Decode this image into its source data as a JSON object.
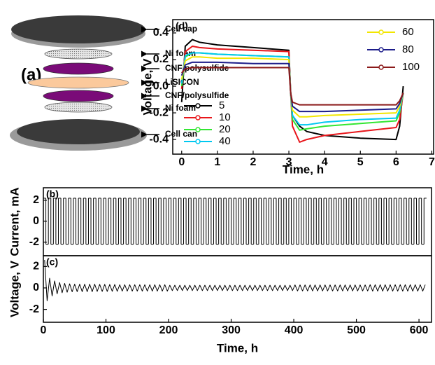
{
  "diagram": {
    "label": "(a)",
    "layers": [
      "Cell cap",
      "Ni foam",
      "CNF/polysulfide",
      "LiSICON",
      "CNF/polysulfide",
      "Ni foam",
      "Cell can"
    ]
  },
  "chart_data": [
    {
      "type": "step",
      "panel_label": "(b)",
      "ylabel": "Current, mA",
      "xlim": [
        0,
        620
      ],
      "ylim": [
        -3.3,
        3.2
      ],
      "yticks": [
        -2,
        0,
        2
      ],
      "color": "#000000",
      "x": [
        2,
        6,
        10,
        14,
        18,
        22,
        26,
        30,
        34,
        38,
        42,
        46,
        50,
        54,
        58,
        62,
        66,
        70,
        74,
        78,
        82,
        86,
        90,
        94,
        98,
        102,
        106,
        110,
        114,
        118,
        122,
        126,
        130,
        134,
        138,
        142,
        146,
        150,
        154,
        158,
        162,
        166,
        170,
        174,
        178,
        182,
        186,
        190,
        194,
        198,
        202,
        206,
        210,
        214,
        218,
        222,
        226,
        230,
        234,
        238,
        242,
        246,
        250,
        254,
        258,
        262,
        266,
        270,
        274,
        278,
        282,
        286,
        290,
        294,
        298,
        302,
        306,
        310,
        314,
        318,
        322,
        326,
        330,
        334,
        338,
        342,
        346,
        350,
        354,
        358,
        362,
        366,
        370,
        374,
        378,
        382,
        386,
        390,
        394,
        398,
        402,
        406,
        410,
        414,
        418,
        422,
        426,
        430,
        434,
        438,
        442,
        446,
        450,
        454,
        458,
        462,
        466,
        470,
        474,
        478,
        482,
        486,
        490,
        494,
        498,
        502,
        506,
        510,
        514,
        518,
        522,
        526,
        530,
        534,
        538,
        542,
        546,
        550,
        554,
        558,
        562,
        566,
        570,
        574,
        578,
        582,
        586,
        590,
        594,
        598,
        602,
        606,
        610
      ],
      "values": [
        2.2,
        -2.2,
        2.2,
        -2.2,
        2.2,
        -2.2,
        2.2,
        -2.2,
        2.2,
        -2.2,
        2.2,
        -2.2,
        2.2,
        -2.2,
        2.2,
        -2.2,
        2.2,
        -2.2,
        2.2,
        -2.2,
        2.2,
        -2.2,
        2.2,
        -2.2,
        2.2,
        -2.2,
        2.2,
        -2.2,
        2.2,
        -2.2,
        2.2,
        -2.2,
        2.2,
        -2.2,
        2.2,
        -2.2,
        2.2,
        -2.2,
        2.2,
        -2.2,
        2.2,
        -2.2,
        2.2,
        -2.2,
        2.2,
        -2.2,
        2.2,
        -2.2,
        2.2,
        -2.2,
        2.2,
        -2.2,
        2.2,
        -2.2,
        2.2,
        -2.2,
        2.2,
        -2.2,
        2.2,
        -2.2,
        2.2,
        -2.2,
        2.2,
        -2.2,
        2.2,
        -2.2,
        2.2,
        -2.2,
        2.2,
        -2.2,
        2.2,
        -2.2,
        2.2,
        -2.2,
        2.2,
        -2.2,
        2.2,
        -2.2,
        2.2,
        -2.2,
        2.2,
        -2.2,
        2.2,
        -2.2,
        2.2,
        -2.2,
        2.2,
        -2.2,
        2.2,
        -2.2,
        2.2,
        -2.2,
        2.2,
        -2.2,
        2.2,
        -2.2,
        2.2,
        -2.2,
        2.2,
        -2.2,
        2.2,
        -2.2,
        2.2,
        -2.2,
        2.2,
        -2.2,
        2.2,
        -2.2,
        2.2,
        -2.2,
        2.2,
        -2.2,
        2.2,
        -2.2,
        2.2,
        -2.2,
        2.2,
        -2.2,
        2.2,
        -2.2,
        2.2,
        -2.2,
        2.2,
        -2.2,
        2.2,
        -2.2,
        2.2,
        -2.2,
        2.2,
        -2.2,
        2.2,
        -2.2,
        2.2,
        -2.2,
        2.2,
        -2.2,
        2.2,
        -2.2,
        2.2,
        -2.2,
        2.2,
        -2.2,
        2.2,
        -2.2,
        2.2,
        -2.2,
        2.2,
        -2.2,
        2.2,
        -2.2,
        2.2,
        -2.2,
        2.2
      ]
    },
    {
      "type": "line",
      "panel_label": "(c)",
      "ylabel": "Voltage, V",
      "xlabel": "Time, h",
      "xlim": [
        0,
        620
      ],
      "ylim": [
        -3.2,
        3.0
      ],
      "xticks": [
        0,
        100,
        200,
        300,
        400,
        500,
        600
      ],
      "yticks": [
        -2,
        0,
        2
      ],
      "color": "#000000",
      "x": [
        2,
        6,
        10,
        14,
        18,
        22,
        26,
        30,
        34,
        38,
        42,
        46,
        50,
        54,
        58,
        62,
        66,
        70,
        74,
        78,
        82,
        86,
        90,
        94,
        98,
        102,
        106,
        110,
        114,
        118,
        122,
        126,
        130,
        134,
        138,
        142,
        146,
        150,
        154,
        158,
        162,
        166,
        170,
        174,
        178,
        182,
        186,
        190,
        194,
        198,
        202,
        206,
        210,
        214,
        218,
        222,
        226,
        230,
        234,
        238,
        242,
        246,
        250,
        254,
        258,
        262,
        266,
        270,
        274,
        278,
        282,
        286,
        290,
        294,
        298,
        302,
        306,
        310,
        314,
        318,
        322,
        326,
        330,
        334,
        338,
        342,
        346,
        350,
        354,
        358,
        362,
        366,
        370,
        374,
        378,
        382,
        386,
        390,
        394,
        398,
        402,
        406,
        410,
        414,
        418,
        422,
        426,
        430,
        434,
        438,
        442,
        446,
        450,
        454,
        458,
        462,
        466,
        470,
        474,
        478,
        482,
        486,
        490,
        494,
        498,
        502,
        506,
        510,
        514,
        518,
        522,
        526,
        530,
        534,
        538,
        542,
        546,
        550,
        554,
        558,
        562,
        566,
        570,
        574,
        578,
        582,
        586,
        590,
        594,
        598,
        602,
        606,
        610
      ],
      "values": [
        2.6,
        -1.2,
        0.9,
        -0.75,
        0.65,
        -0.55,
        0.5,
        -0.45,
        0.42,
        -0.4,
        0.38,
        -0.36,
        0.35,
        -0.35,
        0.35,
        -0.35,
        0.35,
        -0.35,
        0.35,
        -0.35,
        0.35,
        -0.33,
        0.33,
        -0.33,
        0.33,
        -0.33,
        0.32,
        -0.32,
        0.32,
        -0.32,
        0.3,
        -0.3,
        0.3,
        -0.3,
        0.3,
        -0.3,
        0.3,
        -0.3,
        0.3,
        -0.3,
        0.3,
        -0.3,
        0.3,
        -0.3,
        0.3,
        -0.3,
        0.3,
        -0.3,
        0.3,
        -0.3,
        0.25,
        -0.25,
        0.25,
        -0.25,
        0.25,
        -0.25,
        0.25,
        -0.25,
        0.25,
        -0.25,
        0.25,
        -0.25,
        0.25,
        -0.25,
        0.25,
        -0.25,
        0.25,
        -0.25,
        0.25,
        -0.25,
        0.25,
        -0.25,
        0.25,
        -0.25,
        0.25,
        -0.25,
        0.25,
        -0.25,
        0.25,
        -0.25,
        0.25,
        -0.25,
        0.25,
        -0.25,
        0.25,
        -0.25,
        0.25,
        -0.25,
        0.25,
        -0.25,
        0.25,
        -0.25,
        0.25,
        -0.25,
        0.25,
        -0.25,
        0.25,
        -0.25,
        0.25,
        -0.25,
        0.28,
        -0.28,
        0.28,
        -0.28,
        0.28,
        -0.28,
        0.28,
        -0.28,
        0.28,
        -0.28,
        0.28,
        -0.28,
        0.28,
        -0.28,
        0.28,
        -0.28,
        0.28,
        -0.28,
        0.28,
        -0.28,
        0.28,
        -0.28,
        0.28,
        -0.28,
        0.28,
        -0.28,
        0.28,
        -0.28,
        0.28,
        -0.28,
        0.3,
        -0.3,
        0.3,
        -0.3,
        0.3,
        -0.3,
        0.3,
        -0.3,
        0.3,
        -0.3,
        0.3,
        -0.3,
        0.3,
        -0.3,
        0.3,
        -0.3,
        0.3,
        -0.3,
        0.3,
        -0.3,
        0.3,
        -0.3,
        0.3
      ]
    },
    {
      "type": "line",
      "panel_label": "(d)",
      "ylabel": "Voltage, V",
      "xlabel": "Time, h",
      "xlim": [
        -0.25,
        7.05
      ],
      "ylim": [
        -0.51,
        0.5
      ],
      "xticks": [
        0,
        1,
        2,
        3,
        4,
        5,
        6,
        7
      ],
      "yticks": [
        -0.4,
        -0.2,
        {
          "value": 0,
          "label": "0.0"
        },
        0.2,
        0.4
      ],
      "x": [
        0,
        0.1,
        0.3,
        0.5,
        1,
        2,
        3,
        3.05,
        3.1,
        3.3,
        3.5,
        4,
        5,
        6,
        6.1,
        6.2
      ],
      "series": [
        {
          "name": "5",
          "color": "#000000",
          "values": [
            -0.12,
            0.3,
            0.35,
            0.33,
            0.31,
            0.29,
            0.27,
            -0.05,
            -0.22,
            -0.3,
            -0.34,
            -0.37,
            -0.39,
            -0.4,
            -0.3,
            0.0
          ]
        },
        {
          "name": "10",
          "color": "#e8161b",
          "values": [
            -0.02,
            0.26,
            0.3,
            0.29,
            0.28,
            0.27,
            0.26,
            -0.05,
            -0.3,
            -0.42,
            -0.4,
            -0.37,
            -0.34,
            -0.31,
            -0.25,
            -0.05
          ]
        },
        {
          "name": "20",
          "color": "#33e633",
          "values": [
            0.0,
            0.22,
            0.25,
            0.25,
            0.24,
            0.23,
            0.22,
            -0.05,
            -0.25,
            -0.33,
            -0.32,
            -0.3,
            -0.28,
            -0.26,
            -0.2,
            -0.05
          ]
        },
        {
          "name": "40",
          "color": "#00c8f0",
          "values": [
            0.02,
            0.23,
            0.25,
            0.25,
            0.24,
            0.23,
            0.22,
            -0.05,
            -0.22,
            -0.29,
            -0.29,
            -0.27,
            -0.25,
            -0.24,
            -0.18,
            -0.05
          ]
        },
        {
          "name": "60",
          "color": "#f2e600",
          "values": [
            0.05,
            0.19,
            0.22,
            0.22,
            0.21,
            0.21,
            0.2,
            -0.05,
            -0.18,
            -0.23,
            -0.23,
            -0.22,
            -0.21,
            -0.2,
            -0.15,
            -0.05
          ]
        },
        {
          "name": "80",
          "color": "#1c1c8a",
          "values": [
            0.08,
            0.16,
            0.18,
            0.18,
            0.18,
            0.17,
            0.17,
            -0.05,
            -0.15,
            -0.19,
            -0.19,
            -0.19,
            -0.18,
            -0.17,
            -0.13,
            -0.05
          ]
        },
        {
          "name": "100",
          "color": "#8b1a1a",
          "values": [
            0.1,
            0.13,
            0.14,
            0.14,
            0.14,
            0.14,
            0.14,
            -0.05,
            -0.12,
            -0.14,
            -0.14,
            -0.14,
            -0.14,
            -0.14,
            -0.11,
            -0.05
          ]
        }
      ]
    }
  ]
}
